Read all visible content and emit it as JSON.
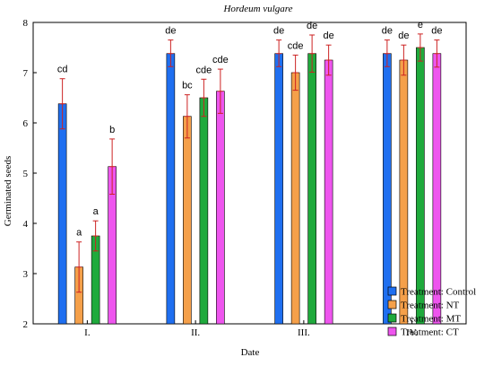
{
  "chart_data": {
    "type": "bar",
    "title": "Hordeum vulgare",
    "xlabel": "Date",
    "ylabel": "Germinated seeds",
    "ylim": [
      2,
      8
    ],
    "yticks": [
      2,
      3,
      4,
      5,
      6,
      7,
      8
    ],
    "categories": [
      "I.",
      "II.",
      "III.",
      "IV."
    ],
    "grid": false,
    "legend_position": "bottom-right",
    "series": [
      {
        "name": "Treatment: Control",
        "color": "#1f6ff0",
        "values": [
          6.38,
          7.38,
          7.38,
          7.38
        ],
        "err_high": [
          6.88,
          7.65,
          7.65,
          7.65
        ],
        "err_low": [
          5.88,
          7.12,
          7.12,
          7.12
        ],
        "labels": [
          "cd",
          "de",
          "de",
          "de"
        ]
      },
      {
        "name": "Treatment: NT",
        "color": "#f5a04a",
        "values": [
          3.13,
          6.13,
          7.0,
          7.25
        ],
        "err_high": [
          3.63,
          6.56,
          7.35,
          7.55
        ],
        "err_low": [
          2.63,
          5.7,
          6.65,
          6.95
        ],
        "labels": [
          "a",
          "bc",
          "cde",
          "de"
        ]
      },
      {
        "name": "Treatment: MT",
        "color": "#1faa3c",
        "values": [
          3.75,
          6.5,
          7.38,
          7.5
        ],
        "err_high": [
          4.05,
          6.87,
          7.75,
          7.77
        ],
        "err_low": [
          3.45,
          6.13,
          7.01,
          7.23
        ],
        "labels": [
          "a",
          "cde",
          "de",
          "e"
        ]
      },
      {
        "name": "Treatment: CT",
        "color": "#ee55ee",
        "values": [
          5.13,
          6.63,
          7.25,
          7.38
        ],
        "err_high": [
          5.68,
          7.07,
          7.55,
          7.65
        ],
        "err_low": [
          4.58,
          6.19,
          6.95,
          7.11
        ],
        "labels": [
          "b",
          "cde",
          "de",
          "de"
        ]
      }
    ]
  }
}
